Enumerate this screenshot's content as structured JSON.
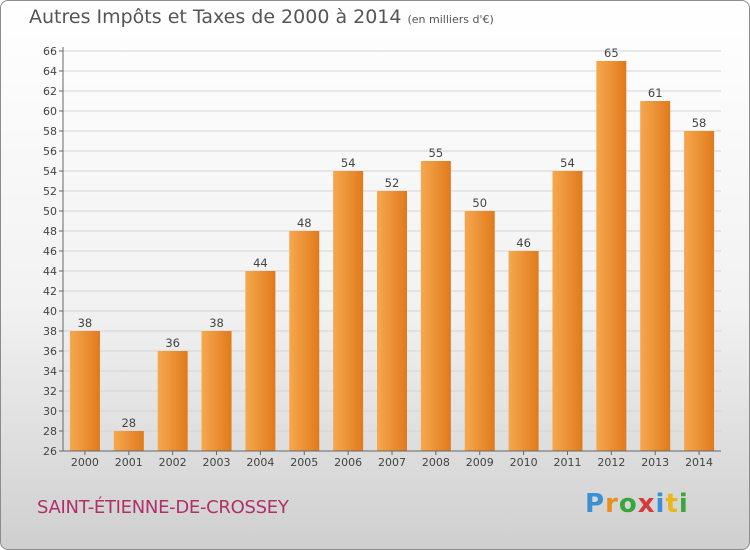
{
  "header": {
    "title": "Autres Impôts et Taxes de 2000 à 2014",
    "subtitle": "(en milliers d'€)"
  },
  "commune": "SAINT-ÉTIENNE-DE-CROSSEY",
  "logo": {
    "text": "Proxiti",
    "letters": [
      {
        "char": "P",
        "color": "#3a8fd6"
      },
      {
        "char": "r",
        "color": "#e8901a"
      },
      {
        "char": "o",
        "color": "#3aa53a"
      },
      {
        "char": "x",
        "color": "#d63a3a"
      },
      {
        "char": "i",
        "color": "#3a8fd6"
      },
      {
        "char": "t",
        "color": "#e8b81a"
      },
      {
        "char": "i",
        "color": "#3aa53a"
      }
    ]
  },
  "colors": {
    "bar_light": "#f6a84e",
    "bar_dark": "#e07a1c",
    "grid": "#d4d4d4",
    "axis": "#666666",
    "text": "#444444"
  },
  "chart_data": {
    "type": "bar",
    "categories": [
      "2000",
      "2001",
      "2002",
      "2003",
      "2004",
      "2005",
      "2006",
      "2007",
      "2008",
      "2009",
      "2010",
      "2011",
      "2012",
      "2013",
      "2014"
    ],
    "values": [
      38,
      28,
      36,
      38,
      44,
      48,
      54,
      52,
      55,
      50,
      46,
      54,
      65,
      61,
      58
    ],
    "title": "Autres Impôts et Taxes de 2000 à 2014",
    "subtitle": "(en milliers d'€)",
    "xlabel": "",
    "ylabel": "",
    "ylim": [
      26,
      66
    ],
    "ytick_step": 2,
    "grid": true,
    "data_labels": true
  }
}
